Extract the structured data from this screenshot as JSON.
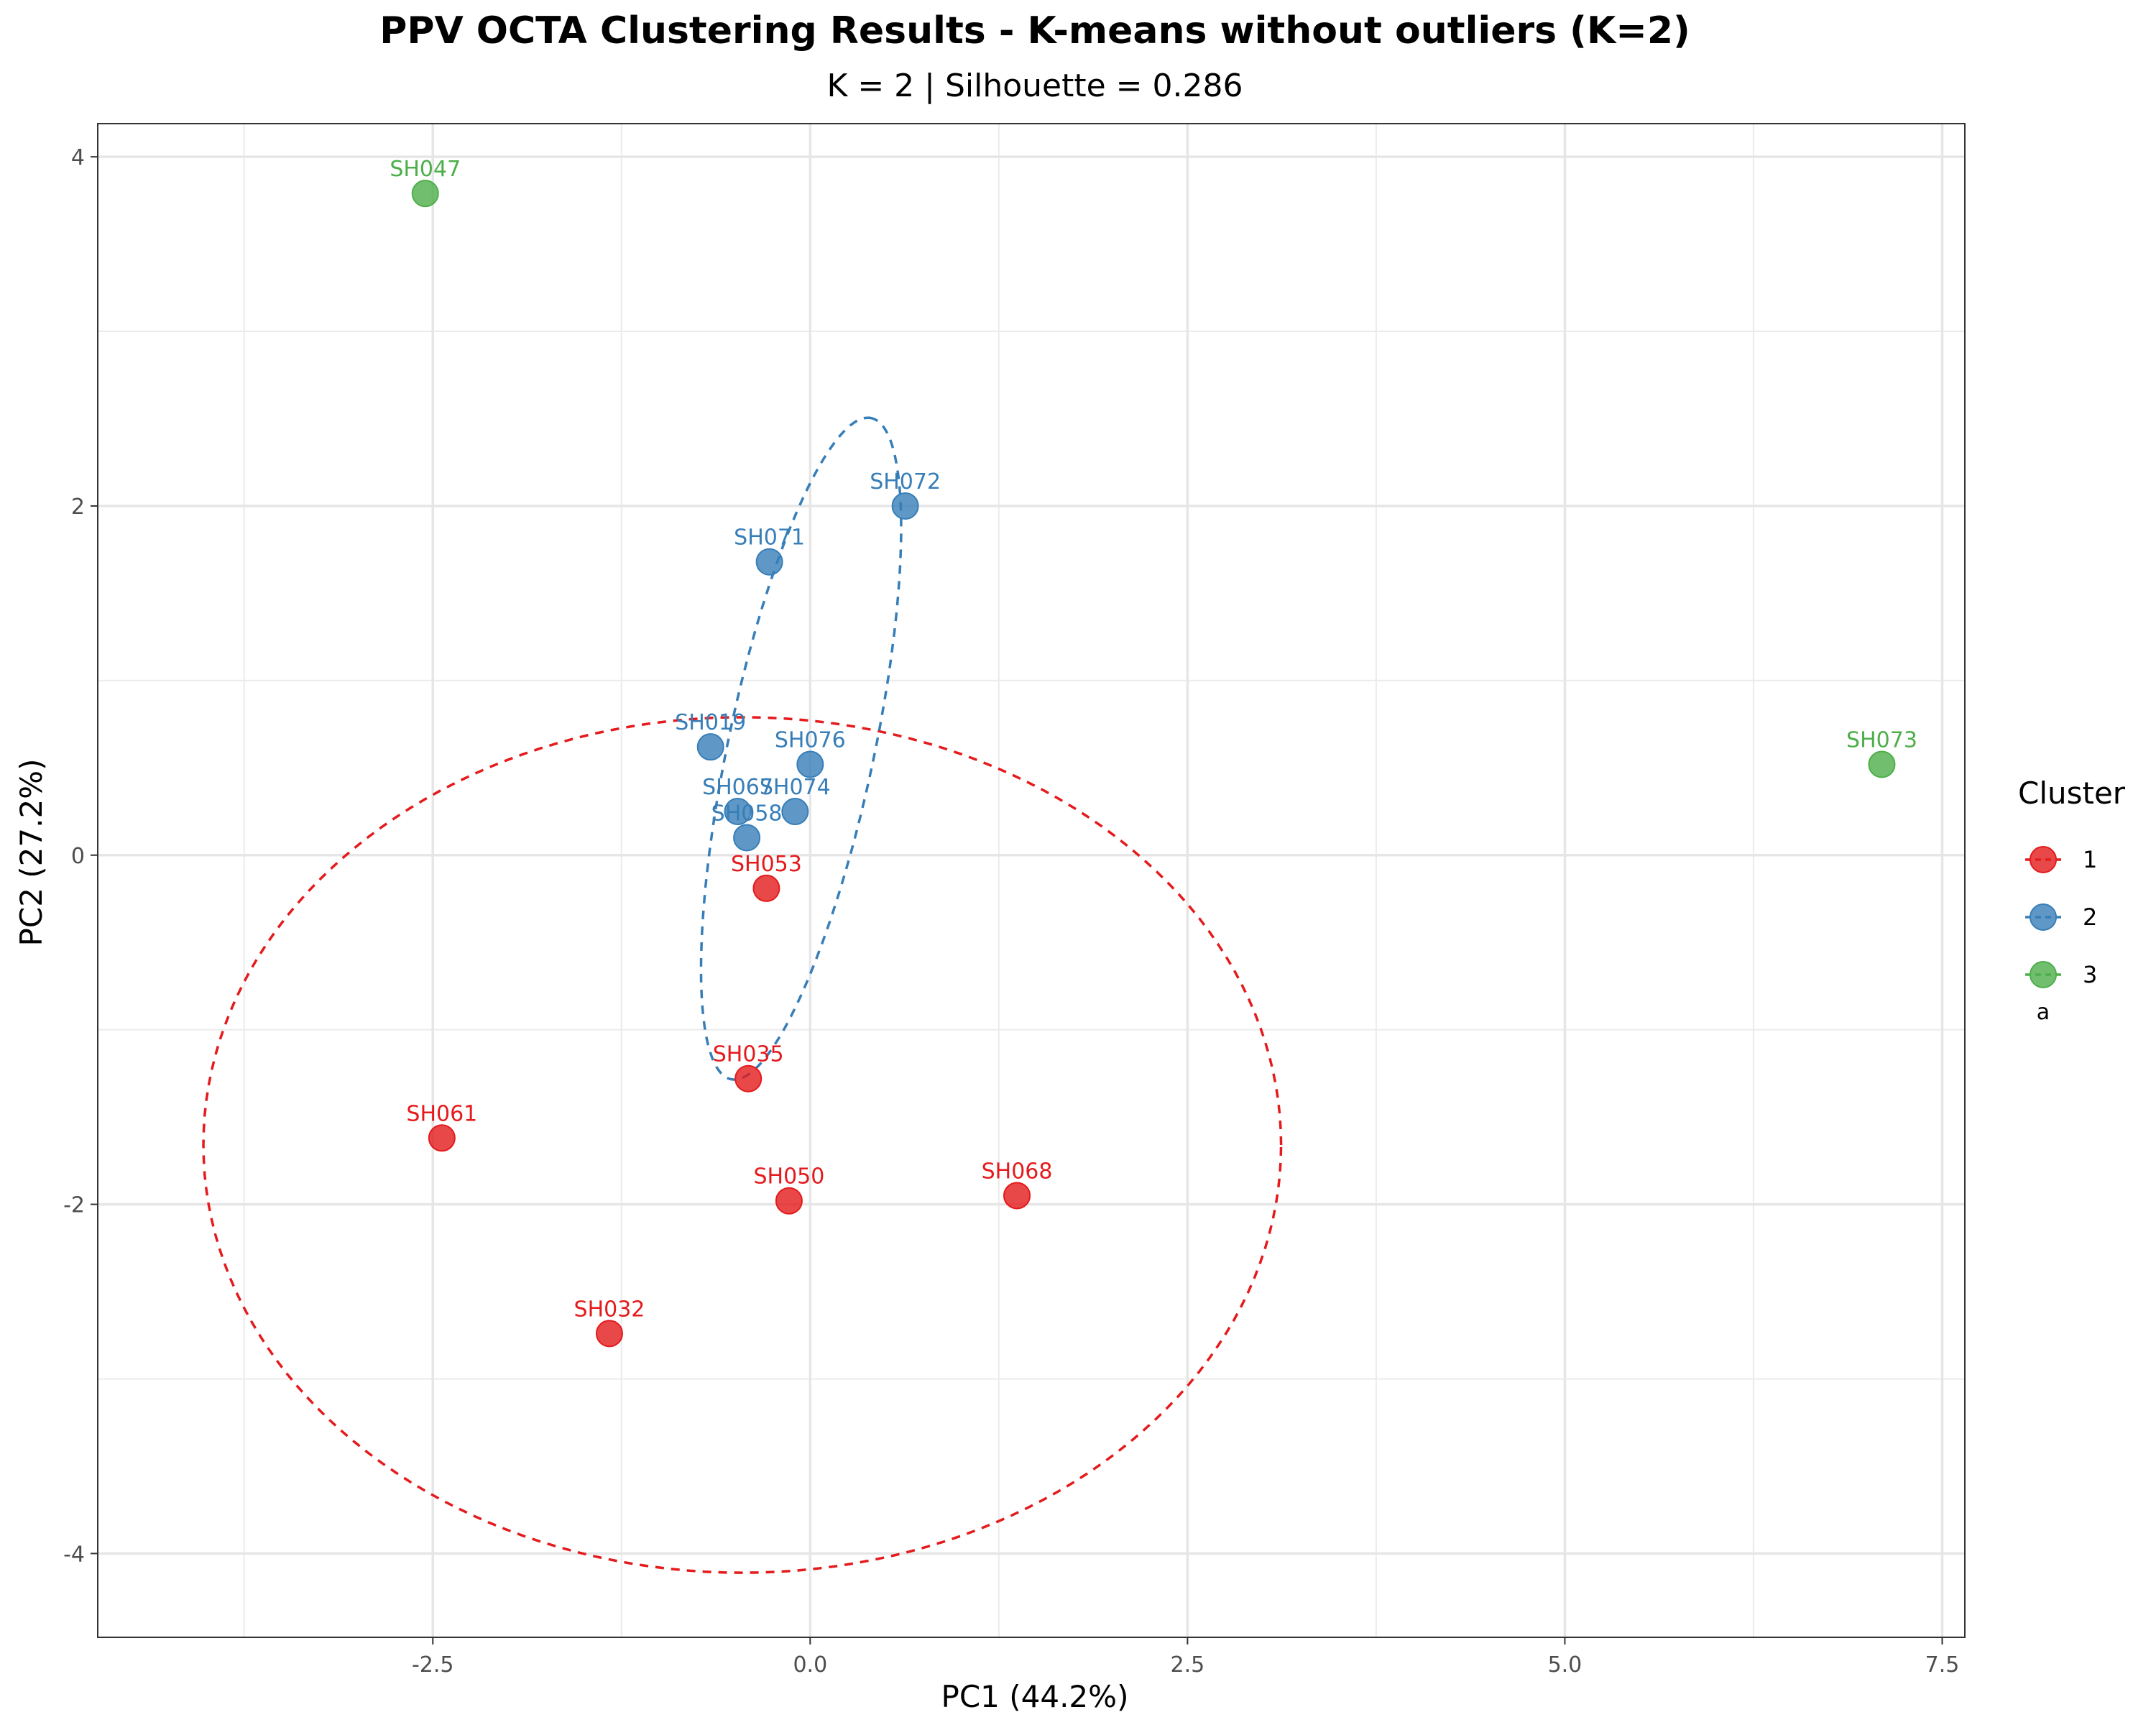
{
  "chart_data": {
    "type": "scatter",
    "title": "PPV OCTA Clustering Results - K-means without outliers (K=2)",
    "subtitle": "K = 2 | Silhouette = 0.286",
    "xlabel": "PC1 (44.2%)",
    "ylabel": "PC2 (27.2%)",
    "xlim": [
      -4.72,
      7.65
    ],
    "ylim": [
      -4.48,
      4.19
    ],
    "x_ticks": [
      -2.5,
      0.0,
      2.5,
      5.0,
      7.5
    ],
    "x_tick_labels": [
      "-2.5",
      "0.0",
      "2.5",
      "5.0",
      "7.5"
    ],
    "y_ticks": [
      -4,
      -2,
      0,
      2,
      4
    ],
    "y_tick_labels": [
      "-4",
      "-2",
      "0",
      "2",
      "4"
    ],
    "grid": true,
    "legend": {
      "title": "Cluster",
      "position": "right",
      "entries": [
        {
          "label": "1",
          "color": "#e41a1c"
        },
        {
          "label": "2",
          "color": "#377eb8"
        },
        {
          "label": "3",
          "color": "#4daf4a",
          "sub_text": "a"
        }
      ]
    },
    "series": [
      {
        "name": "1",
        "color": "#e41a1c",
        "points": [
          {
            "label": "SH053",
            "x": -0.29,
            "y": -0.19
          },
          {
            "label": "SH035",
            "x": -0.41,
            "y": -1.28
          },
          {
            "label": "SH061",
            "x": -2.44,
            "y": -1.62
          },
          {
            "label": "SH050",
            "x": -0.14,
            "y": -1.98
          },
          {
            "label": "SH068",
            "x": 1.37,
            "y": -1.95
          },
          {
            "label": "SH032",
            "x": -1.33,
            "y": -2.74
          }
        ]
      },
      {
        "name": "2",
        "color": "#377eb8",
        "points": [
          {
            "label": "SH072",
            "x": 0.63,
            "y": 2.0
          },
          {
            "label": "SH071",
            "x": -0.27,
            "y": 1.68
          },
          {
            "label": "SH019",
            "x": -0.66,
            "y": 0.62
          },
          {
            "label": "SH076",
            "x": 0.0,
            "y": 0.52
          },
          {
            "label": "SH067",
            "x": -0.48,
            "y": 0.25
          },
          {
            "label": "SH074",
            "x": -0.1,
            "y": 0.25
          },
          {
            "label": "SH058",
            "x": -0.42,
            "y": 0.1
          }
        ]
      },
      {
        "name": "3",
        "color": "#4daf4a",
        "points": [
          {
            "label": "SH047",
            "x": -2.55,
            "y": 3.79
          },
          {
            "label": "SH073",
            "x": 7.1,
            "y": 0.52
          }
        ]
      }
    ],
    "ellipses": [
      {
        "cluster": "1",
        "color": "#e41a1c",
        "style": "dashed",
        "cx": -0.45,
        "cy": -1.66,
        "rx": 3.57,
        "ry": 2.45
      },
      {
        "cluster": "2",
        "color": "#377eb8",
        "style": "dashed",
        "cx": -0.06,
        "cy": 0.61,
        "angle_deg": 76,
        "rx": 1.95,
        "ry": 0.48
      }
    ]
  }
}
